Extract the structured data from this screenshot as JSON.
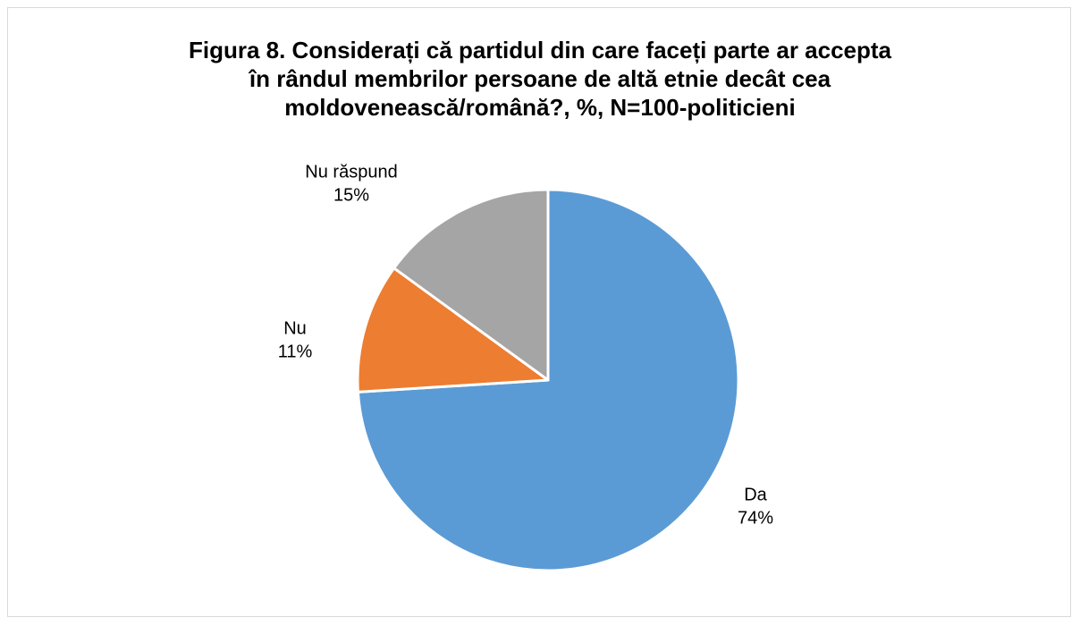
{
  "chart_data": {
    "type": "pie",
    "title": "Figura 8. Considerați că partidul din care faceți parte ar accepta în rândul membrilor persoane de altă etnie decât cea moldovenească/română?, %, N=100-politicieni",
    "categories": [
      "Da",
      "Nu",
      "Nu răspund"
    ],
    "values": [
      74,
      11,
      15
    ],
    "value_labels": [
      "74%",
      "11%",
      "15%"
    ],
    "colors": [
      "#5b9bd5",
      "#ed7d31",
      "#a5a5a5"
    ]
  }
}
